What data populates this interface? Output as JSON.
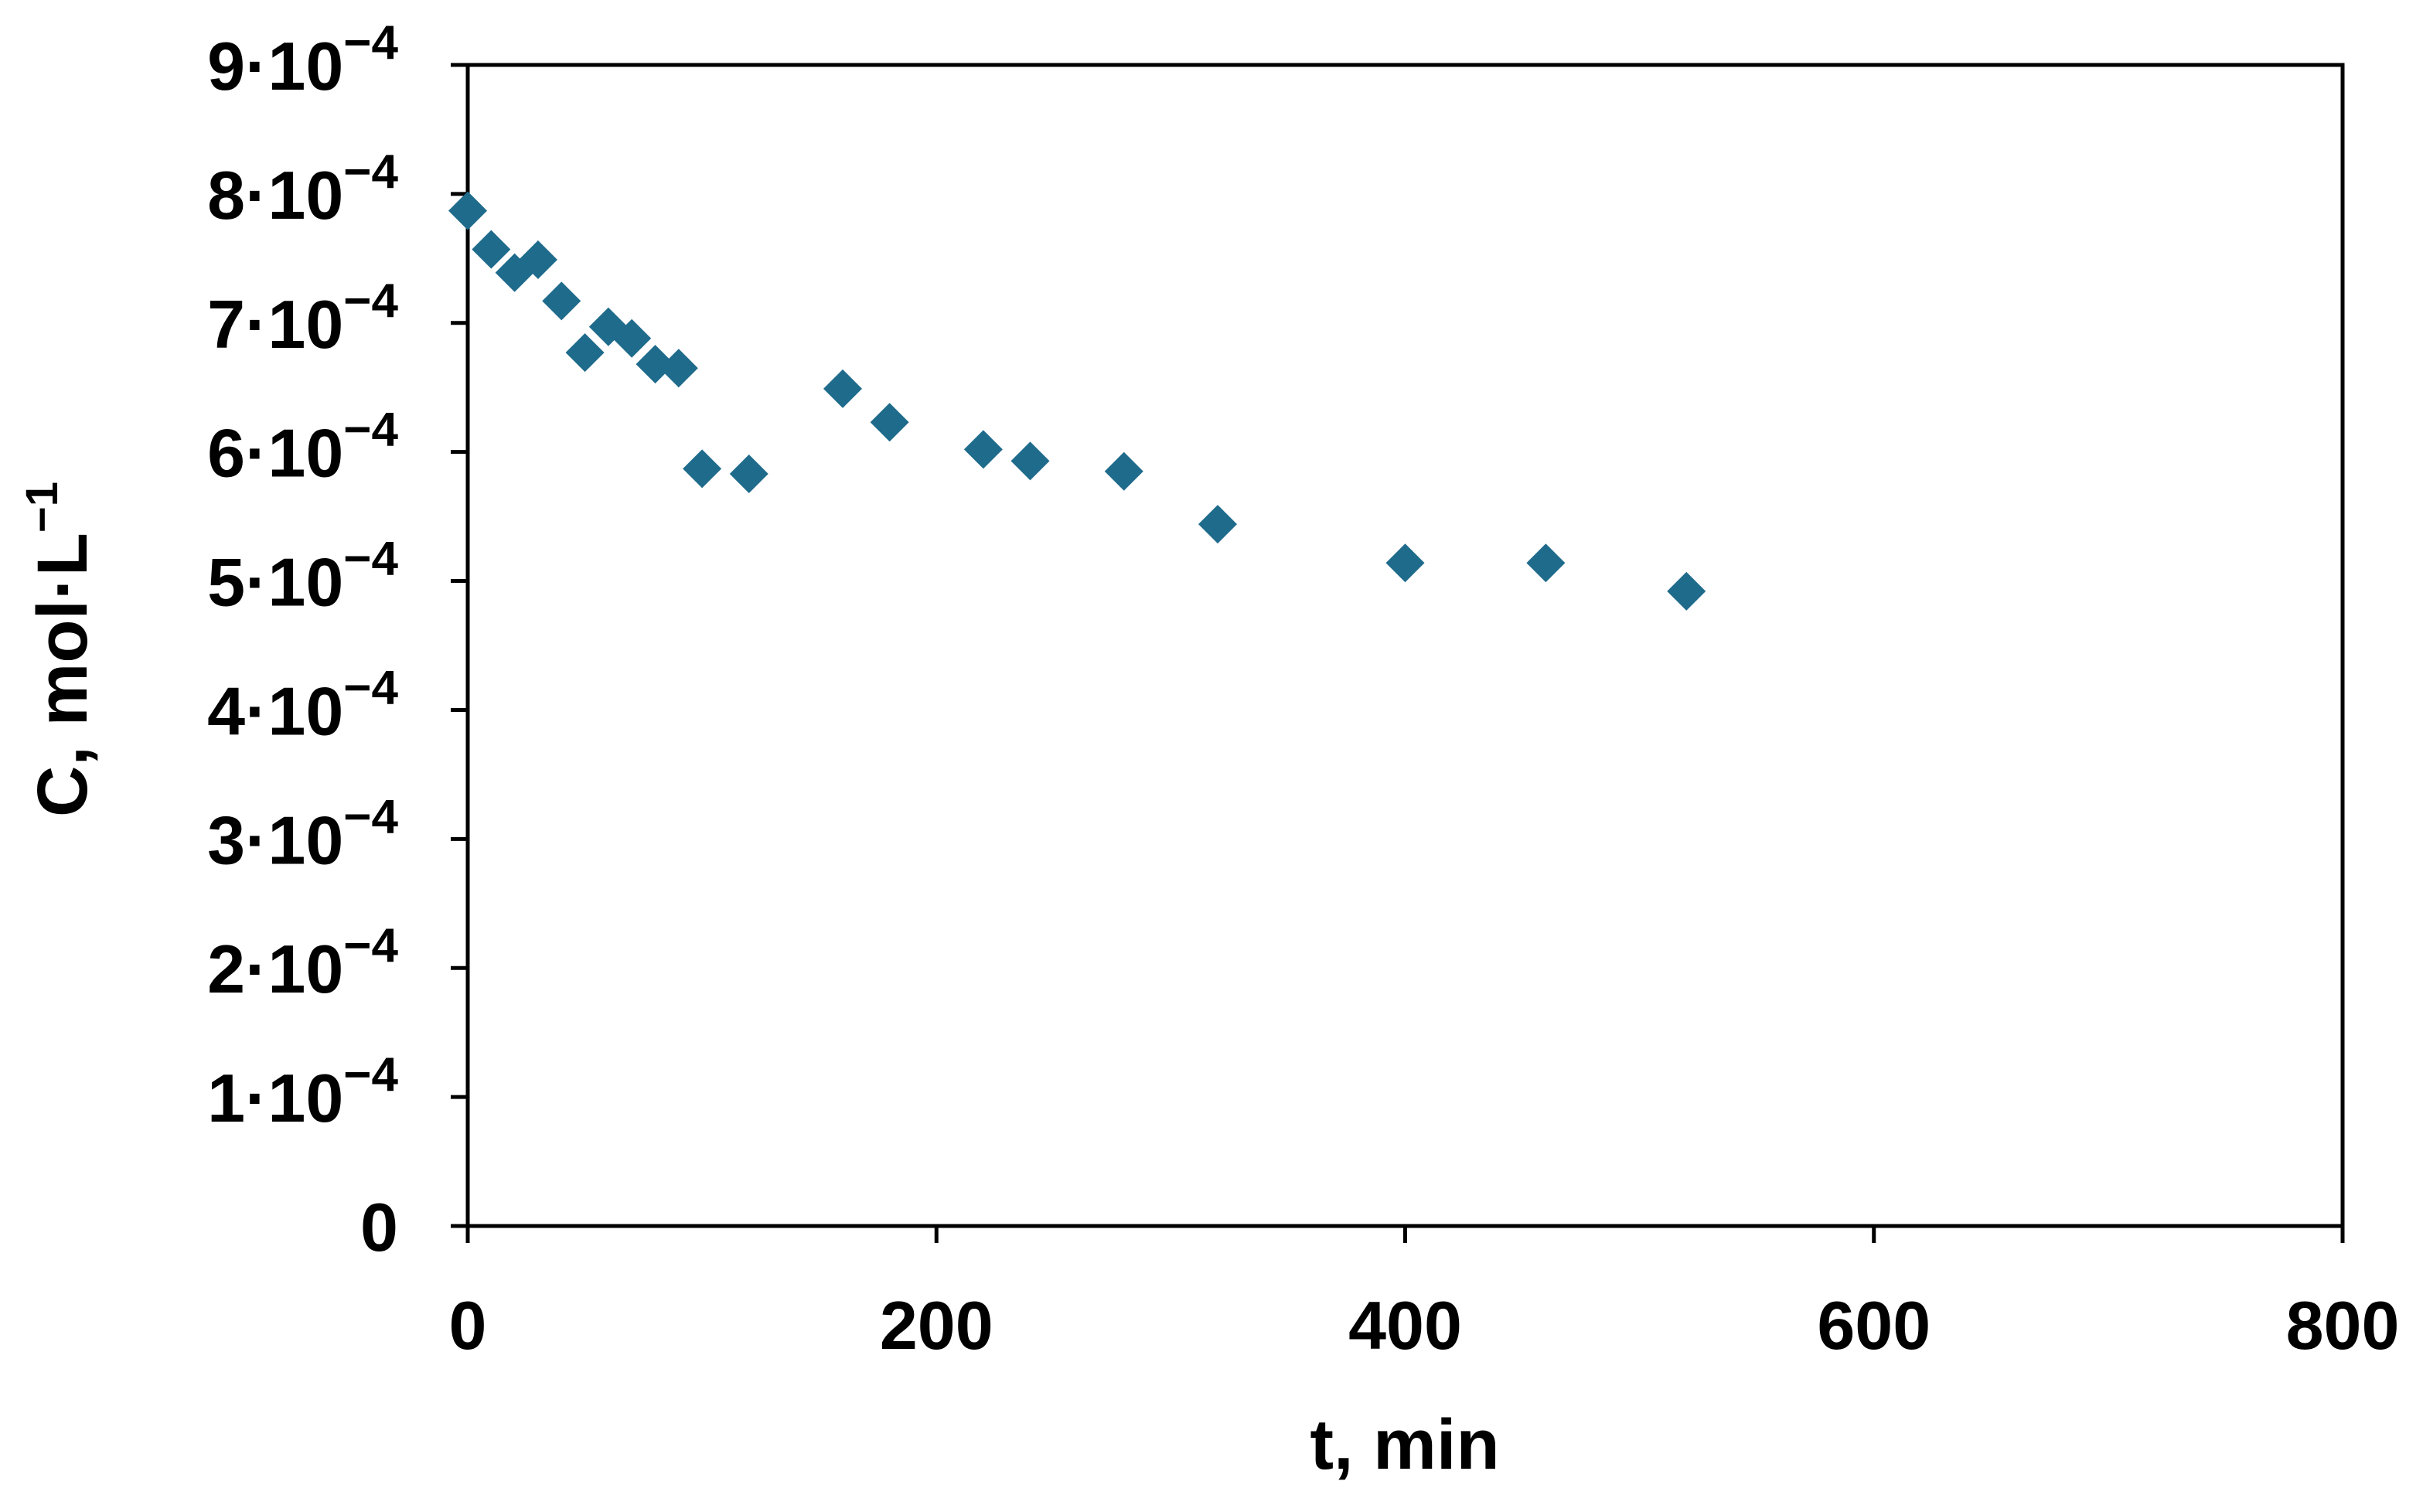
{
  "chart_data": {
    "type": "scatter",
    "title": "",
    "xlabel": "t, min",
    "ylabel": "C, mol·L",
    "ylabel_superscript": "−1",
    "xlim": [
      0,
      800
    ],
    "ylim": [
      0,
      0.0009
    ],
    "x_ticks": [
      {
        "value": 0,
        "label": "0"
      },
      {
        "value": 200,
        "label": "200"
      },
      {
        "value": 400,
        "label": "400"
      },
      {
        "value": 600,
        "label": "600"
      },
      {
        "value": 800,
        "label": "800"
      }
    ],
    "y_ticks": [
      {
        "value": 0,
        "label": "0",
        "exp": ""
      },
      {
        "value": 0.0001,
        "label": "1·10",
        "exp": "−4"
      },
      {
        "value": 0.0002,
        "label": "2·10",
        "exp": "−4"
      },
      {
        "value": 0.0003,
        "label": "3·10",
        "exp": "−4"
      },
      {
        "value": 0.0004,
        "label": "4·10",
        "exp": "−4"
      },
      {
        "value": 0.0005,
        "label": "5·10",
        "exp": "−4"
      },
      {
        "value": 0.0006,
        "label": "6·10",
        "exp": "−4"
      },
      {
        "value": 0.0007,
        "label": "7·10",
        "exp": "−4"
      },
      {
        "value": 0.0008,
        "label": "8·10",
        "exp": "−4"
      },
      {
        "value": 0.0009,
        "label": "9·10",
        "exp": "−4"
      }
    ],
    "grid": false,
    "marker": "diamond",
    "marker_color": "#1f6b8c",
    "series": [
      {
        "points": [
          {
            "x": 0,
            "y": 0.000787
          },
          {
            "x": 10,
            "y": 0.000757
          },
          {
            "x": 20,
            "y": 0.000739
          },
          {
            "x": 30,
            "y": 0.000749
          },
          {
            "x": 40,
            "y": 0.000717
          },
          {
            "x": 50,
            "y": 0.000677
          },
          {
            "x": 60,
            "y": 0.000697
          },
          {
            "x": 70,
            "y": 0.000688
          },
          {
            "x": 80,
            "y": 0.000668
          },
          {
            "x": 90,
            "y": 0.000665
          },
          {
            "x": 100,
            "y": 0.000587
          },
          {
            "x": 120,
            "y": 0.000583
          },
          {
            "x": 160,
            "y": 0.000649
          },
          {
            "x": 180,
            "y": 0.000623
          },
          {
            "x": 220,
            "y": 0.000602
          },
          {
            "x": 240,
            "y": 0.000593
          },
          {
            "x": 280,
            "y": 0.000585
          },
          {
            "x": 320,
            "y": 0.000544
          },
          {
            "x": 400,
            "y": 0.000514
          },
          {
            "x": 460,
            "y": 0.000514
          },
          {
            "x": 520,
            "y": 0.000492
          }
        ]
      }
    ]
  }
}
